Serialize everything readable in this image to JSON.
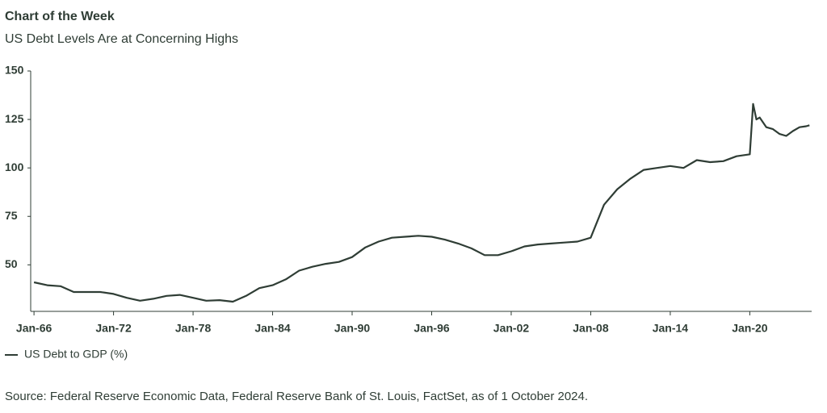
{
  "chart_data": {
    "type": "line",
    "title": "Chart of the Week",
    "subtitle": "US Debt Levels Are at Concerning Highs",
    "source": "Source: Federal Reserve Economic Data, Federal Reserve Bank of St. Louis, FactSet, as of 1 October 2024.",
    "x": [
      "1966-01",
      "1967-01",
      "1968-01",
      "1969-01",
      "1970-01",
      "1971-01",
      "1972-01",
      "1973-01",
      "1974-01",
      "1975-01",
      "1976-01",
      "1977-01",
      "1978-01",
      "1979-01",
      "1980-01",
      "1981-01",
      "1982-01",
      "1983-01",
      "1984-01",
      "1985-01",
      "1986-01",
      "1987-01",
      "1988-01",
      "1989-01",
      "1990-01",
      "1991-01",
      "1992-01",
      "1993-01",
      "1994-01",
      "1995-01",
      "1996-01",
      "1997-01",
      "1998-01",
      "1999-01",
      "2000-01",
      "2001-01",
      "2002-01",
      "2003-01",
      "2004-01",
      "2005-01",
      "2006-01",
      "2007-01",
      "2008-01",
      "2009-01",
      "2010-01",
      "2011-01",
      "2012-01",
      "2013-01",
      "2014-01",
      "2015-01",
      "2016-01",
      "2017-01",
      "2018-01",
      "2019-01",
      "2020-01",
      "2020-04",
      "2020-07",
      "2020-10",
      "2021-04",
      "2021-10",
      "2022-04",
      "2022-10",
      "2023-04",
      "2023-10",
      "2024-04",
      "2024-07"
    ],
    "series": [
      {
        "name": "US Debt to GDP (%)",
        "color": "#2f3d35",
        "values": [
          41,
          39.5,
          39,
          36,
          36,
          36,
          35,
          33,
          31.5,
          32.5,
          34,
          34.5,
          33,
          31.5,
          31.8,
          31,
          34,
          38,
          39.5,
          42.5,
          47,
          49,
          50.5,
          51.5,
          54,
          59,
          62,
          64,
          64.5,
          65,
          64.5,
          63,
          61,
          58.5,
          55,
          55,
          57,
          59.5,
          60.5,
          61,
          61.5,
          62,
          64,
          81,
          89,
          94.5,
          99,
          100,
          101,
          100,
          104,
          103,
          103.5,
          106,
          107,
          133,
          125,
          126,
          121,
          120,
          117.5,
          116.5,
          119,
          121,
          121.5,
          122
        ]
      }
    ],
    "xlim": [
      "1965-10",
      "2024-09"
    ],
    "xticks": [
      {
        "value": "1966-01",
        "label": "Jan-66"
      },
      {
        "value": "1972-01",
        "label": "Jan-72"
      },
      {
        "value": "1978-01",
        "label": "Jan-78"
      },
      {
        "value": "1984-01",
        "label": "Jan-84"
      },
      {
        "value": "1990-01",
        "label": "Jan-90"
      },
      {
        "value": "1996-01",
        "label": "Jan-96"
      },
      {
        "value": "2002-01",
        "label": "Jan-02"
      },
      {
        "value": "2008-01",
        "label": "Jan-08"
      },
      {
        "value": "2014-01",
        "label": "Jan-14"
      },
      {
        "value": "2020-01",
        "label": "Jan-20"
      }
    ],
    "ylim": [
      26,
      150
    ],
    "yticks": [
      50,
      75,
      100,
      125,
      150
    ],
    "grid": false
  }
}
